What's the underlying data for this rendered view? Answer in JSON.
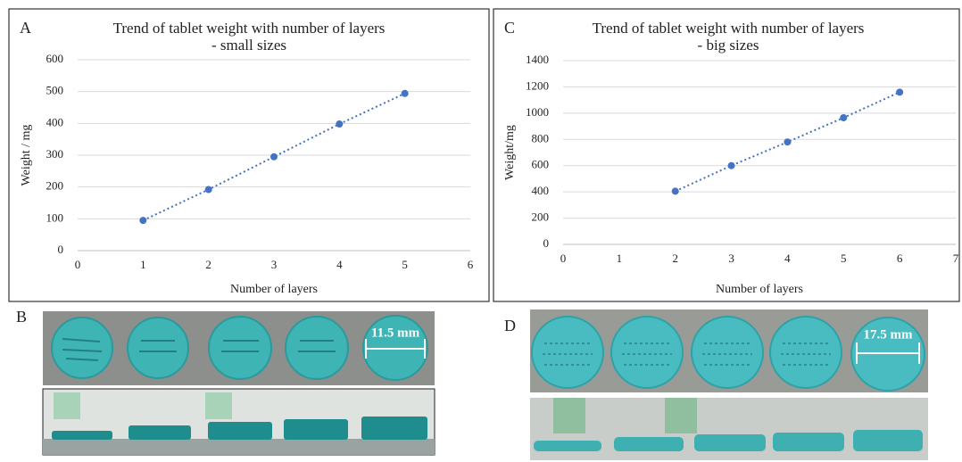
{
  "chart_data": [
    {
      "type": "scatter",
      "title": "Trend of tablet weight with number of layers",
      "subtitle": "- small sizes",
      "x_label": "Number of layers",
      "y_label": "Weight / mg",
      "x": [
        1,
        2,
        3,
        4,
        5
      ],
      "values": [
        95,
        192,
        295,
        398,
        494
      ],
      "color": "#4472c4",
      "xlim": [
        0,
        6
      ],
      "xticks": [
        0,
        1,
        2,
        3,
        4,
        5,
        6
      ],
      "ylim": [
        0,
        600
      ],
      "yticks": [
        0,
        100,
        200,
        300,
        400,
        500,
        600
      ],
      "grid": true
    },
    {
      "type": "scatter",
      "title": "Trend of tablet weight with number of layers",
      "subtitle": "- big sizes",
      "x_label": "Number of layers",
      "y_label": "Weight/mg",
      "x": [
        2,
        3,
        4,
        5,
        6
      ],
      "values": [
        405,
        600,
        780,
        965,
        1160
      ],
      "color": "#4472c4",
      "xlim": [
        0,
        7
      ],
      "xticks": [
        0,
        1,
        2,
        3,
        4,
        5,
        6,
        7
      ],
      "ylim": [
        0,
        1400
      ],
      "yticks": [
        0,
        200,
        400,
        600,
        800,
        1000,
        1200,
        1400
      ],
      "grid": true
    }
  ],
  "panels": [
    "A",
    "B",
    "C",
    "D"
  ],
  "photo_labels": [
    "11.5 mm",
    "17.5 mm"
  ]
}
